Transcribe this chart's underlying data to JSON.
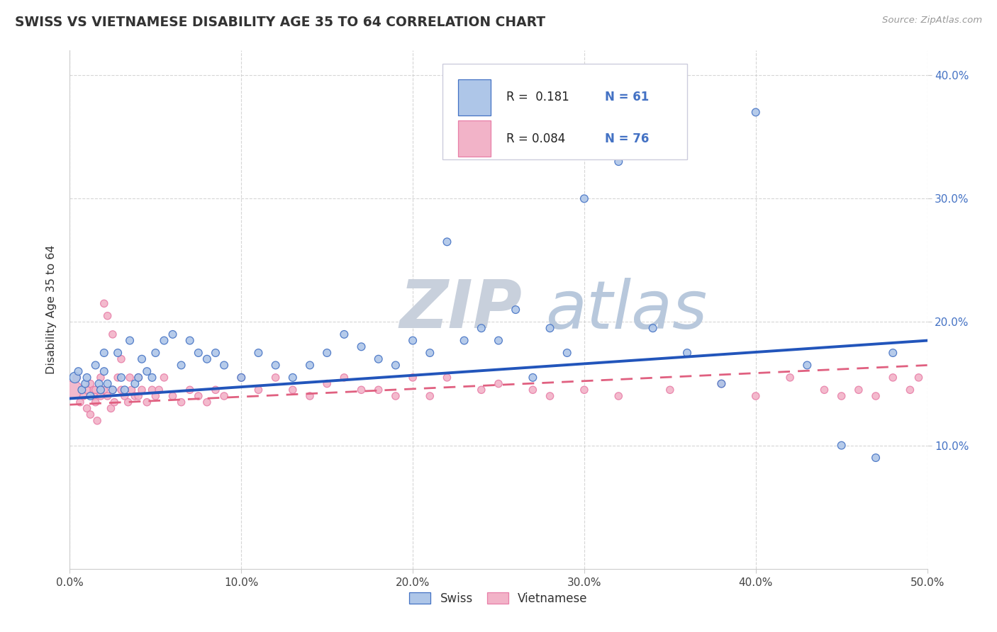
{
  "title": "SWISS VS VIETNAMESE DISABILITY AGE 35 TO 64 CORRELATION CHART",
  "source": "Source: ZipAtlas.com",
  "ylabel": "Disability Age 35 to 64",
  "xlim": [
    0.0,
    0.5
  ],
  "ylim": [
    0.0,
    0.42
  ],
  "xticks": [
    0.0,
    0.1,
    0.2,
    0.3,
    0.4,
    0.5
  ],
  "yticks": [
    0.1,
    0.2,
    0.3,
    0.4
  ],
  "xticklabels": [
    "0.0%",
    "10.0%",
    "20.0%",
    "30.0%",
    "40.0%",
    "50.0%"
  ],
  "yticklabels": [
    "10.0%",
    "20.0%",
    "30.0%",
    "40.0%"
  ],
  "swiss_R": 0.181,
  "swiss_N": 61,
  "viet_R": 0.084,
  "viet_N": 76,
  "swiss_color": "#aec6e8",
  "viet_color": "#f2b3c8",
  "swiss_edge_color": "#4472c4",
  "viet_edge_color": "#e87fa8",
  "swiss_line_color": "#2255bb",
  "viet_line_color": "#e06080",
  "grid_color": "#cccccc",
  "background_color": "#ffffff",
  "legend_box_color": "#f0f0f8",
  "legend_border_color": "#ccccdd",
  "swiss_x": [
    0.003,
    0.005,
    0.007,
    0.009,
    0.01,
    0.012,
    0.015,
    0.017,
    0.018,
    0.02,
    0.02,
    0.022,
    0.025,
    0.028,
    0.03,
    0.032,
    0.035,
    0.038,
    0.04,
    0.042,
    0.045,
    0.048,
    0.05,
    0.055,
    0.06,
    0.065,
    0.07,
    0.075,
    0.08,
    0.085,
    0.09,
    0.1,
    0.11,
    0.12,
    0.13,
    0.14,
    0.15,
    0.16,
    0.17,
    0.18,
    0.19,
    0.2,
    0.21,
    0.22,
    0.23,
    0.24,
    0.25,
    0.26,
    0.27,
    0.28,
    0.29,
    0.3,
    0.32,
    0.34,
    0.36,
    0.38,
    0.4,
    0.43,
    0.45,
    0.47,
    0.48
  ],
  "swiss_y": [
    0.155,
    0.16,
    0.145,
    0.15,
    0.155,
    0.14,
    0.165,
    0.15,
    0.145,
    0.16,
    0.175,
    0.15,
    0.145,
    0.175,
    0.155,
    0.145,
    0.185,
    0.15,
    0.155,
    0.17,
    0.16,
    0.155,
    0.175,
    0.185,
    0.19,
    0.165,
    0.185,
    0.175,
    0.17,
    0.175,
    0.165,
    0.155,
    0.175,
    0.165,
    0.155,
    0.165,
    0.175,
    0.19,
    0.18,
    0.17,
    0.165,
    0.185,
    0.175,
    0.265,
    0.185,
    0.195,
    0.185,
    0.21,
    0.155,
    0.195,
    0.175,
    0.3,
    0.33,
    0.195,
    0.175,
    0.15,
    0.37,
    0.165,
    0.1,
    0.09,
    0.175
  ],
  "viet_x": [
    0.002,
    0.004,
    0.006,
    0.008,
    0.01,
    0.01,
    0.012,
    0.012,
    0.014,
    0.014,
    0.015,
    0.015,
    0.016,
    0.018,
    0.018,
    0.02,
    0.02,
    0.022,
    0.022,
    0.024,
    0.025,
    0.025,
    0.026,
    0.028,
    0.03,
    0.03,
    0.032,
    0.034,
    0.035,
    0.036,
    0.038,
    0.04,
    0.04,
    0.042,
    0.045,
    0.048,
    0.05,
    0.052,
    0.055,
    0.06,
    0.065,
    0.07,
    0.075,
    0.08,
    0.085,
    0.09,
    0.1,
    0.11,
    0.12,
    0.13,
    0.14,
    0.15,
    0.16,
    0.17,
    0.18,
    0.19,
    0.2,
    0.21,
    0.22,
    0.24,
    0.25,
    0.27,
    0.28,
    0.3,
    0.32,
    0.35,
    0.38,
    0.4,
    0.42,
    0.44,
    0.45,
    0.46,
    0.47,
    0.48,
    0.49,
    0.495
  ],
  "viet_y": [
    0.145,
    0.155,
    0.135,
    0.14,
    0.145,
    0.13,
    0.15,
    0.125,
    0.14,
    0.145,
    0.135,
    0.145,
    0.12,
    0.155,
    0.14,
    0.215,
    0.145,
    0.205,
    0.14,
    0.13,
    0.145,
    0.19,
    0.135,
    0.155,
    0.17,
    0.145,
    0.14,
    0.135,
    0.155,
    0.145,
    0.14,
    0.155,
    0.14,
    0.145,
    0.135,
    0.145,
    0.14,
    0.145,
    0.155,
    0.14,
    0.135,
    0.145,
    0.14,
    0.135,
    0.145,
    0.14,
    0.155,
    0.145,
    0.155,
    0.145,
    0.14,
    0.15,
    0.155,
    0.145,
    0.145,
    0.14,
    0.155,
    0.14,
    0.155,
    0.145,
    0.15,
    0.145,
    0.14,
    0.145,
    0.14,
    0.145,
    0.15,
    0.14,
    0.155,
    0.145,
    0.14,
    0.145,
    0.14,
    0.155,
    0.145,
    0.155
  ],
  "viet_large_idx": 0,
  "viet_large_size": 350,
  "swiss_dot_size": 60,
  "viet_dot_size": 55,
  "swiss_trend_y0": 0.138,
  "swiss_trend_y1": 0.185,
  "viet_trend_y0": 0.133,
  "viet_trend_y1": 0.165
}
